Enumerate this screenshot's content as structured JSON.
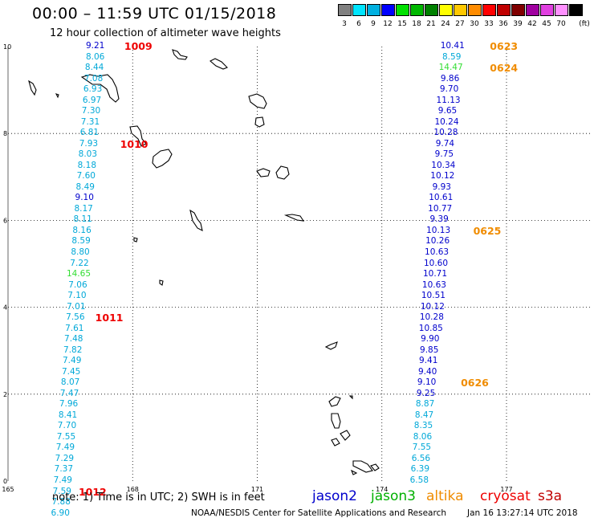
{
  "title": "00:00 – 11:59 UTC 01/15/2018",
  "subtitle": "12 hour collection of altimeter wave heights",
  "color_scale": {
    "unit": "(ft)",
    "bins": [
      {
        "label": "3",
        "color": "#808080"
      },
      {
        "label": "6",
        "color": "#00e5ff"
      },
      {
        "label": "9",
        "color": "#00b0e0"
      },
      {
        "label": "12",
        "color": "#0000ff"
      },
      {
        "label": "15",
        "color": "#00e000"
      },
      {
        "label": "18",
        "color": "#00b800"
      },
      {
        "label": "21",
        "color": "#008000"
      },
      {
        "label": "24",
        "color": "#ffff00"
      },
      {
        "label": "27",
        "color": "#ffc800"
      },
      {
        "label": "30",
        "color": "#ff8c00"
      },
      {
        "label": "33",
        "color": "#ff0000"
      },
      {
        "label": "36",
        "color": "#c00000"
      },
      {
        "label": "39",
        "color": "#800000"
      },
      {
        "label": "42",
        "color": "#a000a0"
      },
      {
        "label": "45",
        "color": "#e040e0"
      },
      {
        "label": "70",
        "color": "#ff90ff"
      },
      {
        "label": "",
        "color": "#000000"
      }
    ]
  },
  "axes": {
    "x_ticks": [
      "165",
      "168",
      "171",
      "174",
      "177"
    ],
    "y_ticks": [
      "0",
      "2",
      "4",
      "6",
      "8",
      "10"
    ],
    "x_range": [
      165,
      179
    ],
    "y_range": [
      0,
      10
    ]
  },
  "tracks": [
    {
      "satellite": "jason3",
      "readings": [
        {
          "lon": 167.1,
          "lat": 10.0,
          "swh": "9.21",
          "color": "#0000cc"
        },
        {
          "lon": 167.1,
          "lat": 9.75,
          "swh": "8.06",
          "color": "#00a8d8"
        },
        {
          "lon": 167.08,
          "lat": 9.5,
          "swh": "8.44",
          "color": "#00a8d8"
        },
        {
          "lon": 167.06,
          "lat": 9.25,
          "swh": "7.08",
          "color": "#00a8d8"
        },
        {
          "lon": 167.04,
          "lat": 9.0,
          "swh": "6.93",
          "color": "#00a8d8"
        },
        {
          "lon": 167.02,
          "lat": 8.75,
          "swh": "6.97",
          "color": "#00a8d8"
        },
        {
          "lon": 167.0,
          "lat": 8.5,
          "swh": "7.30",
          "color": "#00a8d8"
        },
        {
          "lon": 166.98,
          "lat": 8.25,
          "swh": "7.31",
          "color": "#00a8d8"
        },
        {
          "lon": 166.96,
          "lat": 8.0,
          "swh": "6.81",
          "color": "#00a8d8"
        },
        {
          "lon": 166.94,
          "lat": 7.75,
          "swh": "7.93",
          "color": "#00a8d8"
        },
        {
          "lon": 166.92,
          "lat": 7.5,
          "swh": "8.03",
          "color": "#00a8d8"
        },
        {
          "lon": 166.9,
          "lat": 7.25,
          "swh": "8.18",
          "color": "#00a8d8"
        },
        {
          "lon": 166.88,
          "lat": 7.0,
          "swh": "7.60",
          "color": "#00a8d8"
        },
        {
          "lon": 166.86,
          "lat": 6.75,
          "swh": "8.49",
          "color": "#00a8d8"
        },
        {
          "lon": 166.84,
          "lat": 6.5,
          "swh": "9.10",
          "color": "#0000cc"
        },
        {
          "lon": 166.82,
          "lat": 6.25,
          "swh": "8.17",
          "color": "#00a8d8"
        },
        {
          "lon": 166.8,
          "lat": 6.0,
          "swh": "8.11",
          "color": "#00a8d8"
        },
        {
          "lon": 166.78,
          "lat": 5.75,
          "swh": "8.16",
          "color": "#00a8d8"
        },
        {
          "lon": 166.76,
          "lat": 5.5,
          "swh": "8.59",
          "color": "#00a8d8"
        },
        {
          "lon": 166.74,
          "lat": 5.25,
          "swh": "8.80",
          "color": "#00a8d8"
        },
        {
          "lon": 166.72,
          "lat": 5.0,
          "swh": "7.22",
          "color": "#00a8d8"
        },
        {
          "lon": 166.7,
          "lat": 4.75,
          "swh": "14.65",
          "color": "#33dd33"
        },
        {
          "lon": 166.68,
          "lat": 4.5,
          "swh": "7.06",
          "color": "#00a8d8"
        },
        {
          "lon": 166.66,
          "lat": 4.25,
          "swh": "7.10",
          "color": "#00a8d8"
        },
        {
          "lon": 166.64,
          "lat": 4.0,
          "swh": "7.01",
          "color": "#00a8d8"
        },
        {
          "lon": 166.62,
          "lat": 3.75,
          "swh": "7.56",
          "color": "#00a8d8"
        },
        {
          "lon": 166.6,
          "lat": 3.5,
          "swh": "7.61",
          "color": "#00a8d8"
        },
        {
          "lon": 166.58,
          "lat": 3.25,
          "swh": "7.48",
          "color": "#00a8d8"
        },
        {
          "lon": 166.56,
          "lat": 3.0,
          "swh": "7.82",
          "color": "#00a8d8"
        },
        {
          "lon": 166.54,
          "lat": 2.75,
          "swh": "7.49",
          "color": "#00a8d8"
        },
        {
          "lon": 166.52,
          "lat": 2.5,
          "swh": "7.45",
          "color": "#00a8d8"
        },
        {
          "lon": 166.5,
          "lat": 2.25,
          "swh": "8.07",
          "color": "#00a8d8"
        },
        {
          "lon": 166.48,
          "lat": 2.0,
          "swh": "7.47",
          "color": "#00a8d8"
        },
        {
          "lon": 166.46,
          "lat": 1.75,
          "swh": "7.96",
          "color": "#00a8d8"
        },
        {
          "lon": 166.44,
          "lat": 1.5,
          "swh": "8.41",
          "color": "#00a8d8"
        },
        {
          "lon": 166.42,
          "lat": 1.25,
          "swh": "7.70",
          "color": "#00a8d8"
        },
        {
          "lon": 166.4,
          "lat": 1.0,
          "swh": "7.55",
          "color": "#00a8d8"
        },
        {
          "lon": 166.38,
          "lat": 0.75,
          "swh": "7.49",
          "color": "#00a8d8"
        },
        {
          "lon": 166.36,
          "lat": 0.5,
          "swh": "7.29",
          "color": "#00a8d8"
        },
        {
          "lon": 166.34,
          "lat": 0.25,
          "swh": "7.37",
          "color": "#00a8d8"
        },
        {
          "lon": 166.32,
          "lat": 0.0,
          "swh": "7.49",
          "color": "#00a8d8"
        },
        {
          "lon": 166.3,
          "lat": -0.25,
          "swh": "7.59",
          "color": "#00a8d8"
        },
        {
          "lon": 166.28,
          "lat": -0.5,
          "swh": "7.88",
          "color": "#00a8d8"
        },
        {
          "lon": 166.26,
          "lat": -0.75,
          "swh": "6.90",
          "color": "#00a8d8"
        }
      ]
    },
    {
      "satellite": "altika",
      "readings": [
        {
          "lon": 175.7,
          "lat": 10.0,
          "swh": "10.41",
          "color": "#0000cc"
        },
        {
          "lon": 175.68,
          "lat": 9.75,
          "swh": "8.59",
          "color": "#00a8d8"
        },
        {
          "lon": 175.66,
          "lat": 9.5,
          "swh": "14.47",
          "color": "#33dd33"
        },
        {
          "lon": 175.64,
          "lat": 9.25,
          "swh": "9.86",
          "color": "#0000cc"
        },
        {
          "lon": 175.62,
          "lat": 9.0,
          "swh": "9.70",
          "color": "#0000cc"
        },
        {
          "lon": 175.6,
          "lat": 8.75,
          "swh": "11.13",
          "color": "#0000cc"
        },
        {
          "lon": 175.58,
          "lat": 8.5,
          "swh": "9.65",
          "color": "#0000cc"
        },
        {
          "lon": 175.56,
          "lat": 8.25,
          "swh": "10.24",
          "color": "#0000cc"
        },
        {
          "lon": 175.54,
          "lat": 8.0,
          "swh": "10.28",
          "color": "#0000cc"
        },
        {
          "lon": 175.52,
          "lat": 7.75,
          "swh": "9.74",
          "color": "#0000cc"
        },
        {
          "lon": 175.5,
          "lat": 7.5,
          "swh": "9.75",
          "color": "#0000cc"
        },
        {
          "lon": 175.48,
          "lat": 7.25,
          "swh": "10.34",
          "color": "#0000cc"
        },
        {
          "lon": 175.46,
          "lat": 7.0,
          "swh": "10.12",
          "color": "#0000cc"
        },
        {
          "lon": 175.44,
          "lat": 6.75,
          "swh": "9.93",
          "color": "#0000cc"
        },
        {
          "lon": 175.42,
          "lat": 6.5,
          "swh": "10.61",
          "color": "#0000cc"
        },
        {
          "lon": 175.4,
          "lat": 6.25,
          "swh": "10.77",
          "color": "#0000cc"
        },
        {
          "lon": 175.38,
          "lat": 6.0,
          "swh": "9.39",
          "color": "#0000cc"
        },
        {
          "lon": 175.36,
          "lat": 5.75,
          "swh": "10.13",
          "color": "#0000cc"
        },
        {
          "lon": 175.34,
          "lat": 5.5,
          "swh": "10.26",
          "color": "#0000cc"
        },
        {
          "lon": 175.32,
          "lat": 5.25,
          "swh": "10.63",
          "color": "#0000cc"
        },
        {
          "lon": 175.3,
          "lat": 5.0,
          "swh": "10.60",
          "color": "#0000cc"
        },
        {
          "lon": 175.28,
          "lat": 4.75,
          "swh": "10.71",
          "color": "#0000cc"
        },
        {
          "lon": 175.26,
          "lat": 4.5,
          "swh": "10.63",
          "color": "#0000cc"
        },
        {
          "lon": 175.24,
          "lat": 4.25,
          "swh": "10.51",
          "color": "#0000cc"
        },
        {
          "lon": 175.22,
          "lat": 4.0,
          "swh": "10.12",
          "color": "#0000cc"
        },
        {
          "lon": 175.2,
          "lat": 3.75,
          "swh": "10.28",
          "color": "#0000cc"
        },
        {
          "lon": 175.18,
          "lat": 3.5,
          "swh": "10.85",
          "color": "#0000cc"
        },
        {
          "lon": 175.16,
          "lat": 3.25,
          "swh": "9.90",
          "color": "#0000cc"
        },
        {
          "lon": 175.14,
          "lat": 3.0,
          "swh": "9.85",
          "color": "#0000cc"
        },
        {
          "lon": 175.12,
          "lat": 2.75,
          "swh": "9.41",
          "color": "#0000cc"
        },
        {
          "lon": 175.1,
          "lat": 2.5,
          "swh": "9.40",
          "color": "#0000cc"
        },
        {
          "lon": 175.08,
          "lat": 2.25,
          "swh": "9.10",
          "color": "#0000cc"
        },
        {
          "lon": 175.06,
          "lat": 2.0,
          "swh": "9.25",
          "color": "#0000cc"
        },
        {
          "lon": 175.04,
          "lat": 1.75,
          "swh": "8.87",
          "color": "#00a8d8"
        },
        {
          "lon": 175.02,
          "lat": 1.5,
          "swh": "8.47",
          "color": "#00a8d8"
        },
        {
          "lon": 175.0,
          "lat": 1.25,
          "swh": "8.35",
          "color": "#00a8d8"
        },
        {
          "lon": 174.98,
          "lat": 1.0,
          "swh": "8.06",
          "color": "#00a8d8"
        },
        {
          "lon": 174.96,
          "lat": 0.75,
          "swh": "7.55",
          "color": "#00a8d8"
        },
        {
          "lon": 174.94,
          "lat": 0.5,
          "swh": "6.56",
          "color": "#00a8d8"
        },
        {
          "lon": 174.92,
          "lat": 0.25,
          "swh": "6.39",
          "color": "#00a8d8"
        },
        {
          "lon": 174.9,
          "lat": 0.0,
          "swh": "6.58",
          "color": "#00a8d8"
        }
      ]
    }
  ],
  "time_labels": [
    {
      "text": "1009",
      "lon": 167.8,
      "lat": 10.0,
      "color": "#ee0000"
    },
    {
      "text": "1010",
      "lon": 167.7,
      "lat": 7.75,
      "color": "#ee0000"
    },
    {
      "text": "1011",
      "lon": 167.1,
      "lat": 3.75,
      "color": "#ee0000"
    },
    {
      "text": "1012",
      "lon": 166.7,
      "lat": -0.25,
      "color": "#ee0000"
    },
    {
      "text": "0623",
      "lon": 176.6,
      "lat": 10.0,
      "color": "#f08c00"
    },
    {
      "text": "0624",
      "lon": 176.6,
      "lat": 9.5,
      "color": "#f08c00"
    },
    {
      "text": "0625",
      "lon": 176.2,
      "lat": 5.75,
      "color": "#f08c00"
    },
    {
      "text": "0626",
      "lon": 175.9,
      "lat": 2.25,
      "color": "#f08c00"
    }
  ],
  "note": "note: 1) Time is in UTC; 2) SWH is in feet",
  "legend": [
    {
      "name": "jason2",
      "color": "#0000cc"
    },
    {
      "name": "jason3",
      "color": "#00b000"
    },
    {
      "name": "altika",
      "color": "#f08c00"
    },
    {
      "name": "cryosat",
      "color": "#ee0000"
    },
    {
      "name": "s3a",
      "color": "#c00000"
    }
  ],
  "footer": "NOAA/NESDIS Center for Satellite Applications and Research",
  "timestamp": "Jan 16 13:27:14 UTC 2018"
}
